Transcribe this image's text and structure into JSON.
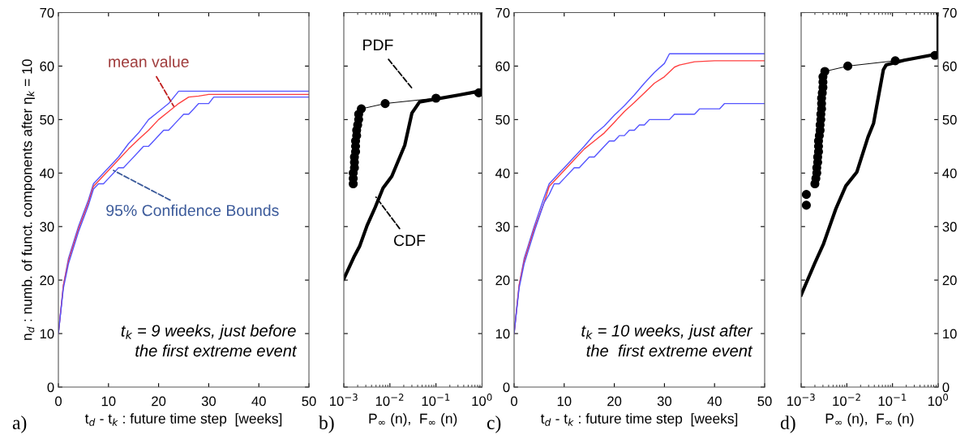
{
  "chart_data": [
    {
      "type": "line",
      "xlabel": "t$_{d}$ - t$_{k}$ : future time step  [weeks]",
      "ylabel": "n$_{d}$ : numb. of funct. components after η$_{k}$ = 10",
      "xlim": [
        0,
        50
      ],
      "xticks": [
        0,
        10,
        20,
        30,
        40,
        50
      ],
      "ylim": [
        0,
        70
      ],
      "yticks": [
        0,
        10,
        20,
        30,
        40,
        50,
        60,
        70
      ],
      "grid": false,
      "series": [
        {
          "color": "#5555ff",
          "x": [
            0,
            1,
            2,
            4,
            6,
            7,
            9,
            10,
            12,
            14,
            16,
            18,
            20,
            22,
            24,
            50
          ],
          "values": [
            10,
            19,
            24,
            30,
            35,
            38,
            40,
            41,
            43,
            45.5,
            47.5,
            50,
            51.5,
            53,
            55.3,
            55.3
          ]
        },
        {
          "color": "#ff4040",
          "x": [
            0,
            1,
            2,
            4,
            6,
            7,
            9,
            10,
            12,
            14,
            16,
            18,
            20,
            22,
            24,
            26,
            28,
            30,
            50
          ],
          "values": [
            10,
            19,
            23.5,
            29.5,
            34.5,
            37.5,
            39.5,
            40.5,
            42.5,
            44.5,
            46.3,
            48,
            50,
            51.5,
            53,
            54.2,
            54.4,
            54.7,
            54.7
          ]
        },
        {
          "color": "#5555ff",
          "x": [
            0,
            1,
            2,
            4,
            6,
            7,
            8,
            9,
            10,
            11,
            12,
            13,
            14,
            16,
            17,
            18,
            19,
            21,
            22,
            24,
            25,
            26,
            27,
            28,
            30,
            31,
            50
          ],
          "values": [
            10,
            18.5,
            23,
            29,
            34,
            37,
            38,
            38,
            39,
            40,
            41,
            41,
            42,
            44,
            45,
            45,
            46,
            48,
            48,
            50,
            51,
            51,
            52,
            53,
            53,
            54.2,
            54.2
          ]
        }
      ],
      "annotations": [
        "a)",
        {
          "text": "mean value",
          "x": 23,
          "y": 52.5
        },
        {
          "text": "95% Confidence Bounds",
          "x": 11,
          "y": 40.5
        },
        "t$_{k}$ = 9 weeks, just before\nthe first extreme event"
      ]
    },
    {
      "type": "line",
      "xlabel": "P$_{∞}$ (n),  F$_{∞}$ (n)",
      "log": "x",
      "xlim": [
        0.001,
        1
      ],
      "xticks": [
        {
          "value": 0.001,
          "label": "10$^{−3}$"
        },
        {
          "value": 0.01,
          "label": "10$^{−2}$"
        },
        {
          "value": 0.1,
          "label": "10$^{−1}$"
        },
        {
          "value": 1,
          "label": "10$^{0}$"
        }
      ],
      "ylim": [
        0,
        70
      ],
      "yticks": [
        0,
        10,
        20,
        30,
        40,
        50,
        60,
        70
      ],
      "tick_labels": "x",
      "grid": false,
      "series": [
        {
          "color": "#000000",
          "marker": "circle",
          "x": [
            0.0016,
            0.0016,
            0.0016,
            0.0017,
            0.0017,
            0.0017,
            0.0018,
            0.0018,
            0.0018,
            0.0019,
            0.0019,
            0.002,
            0.0021,
            0.0021,
            0.0024,
            0.0079,
            0.1,
            0.85
          ],
          "values": [
            38,
            39,
            40,
            41,
            42,
            43,
            44,
            45,
            46,
            47,
            48,
            49,
            50,
            51,
            52,
            53,
            54,
            55
          ]
        },
        {
          "color": "#000000",
          "x": [
            0.001,
            0.0017,
            0.0022,
            0.0032,
            0.0048,
            0.0071,
            0.011,
            0.021,
            0.03,
            0.044,
            0.32,
            0.87,
            1,
            1
          ],
          "values": [
            20.2,
            24.5,
            26.3,
            30.2,
            33.6,
            37.2,
            39.4,
            45.2,
            51.2,
            53.3,
            54.6,
            55.3,
            55.7,
            70
          ]
        }
      ],
      "annotations": [
        "b)",
        "PDF",
        {
          "text": "CDF",
          "x": 0.005,
          "y": 35.5
        }
      ]
    },
    {
      "type": "line",
      "xlabel": "t$_{d}$ - t$_{k}$ : future time step  [weeks]",
      "xlim": [
        0,
        50
      ],
      "xticks": [
        0,
        10,
        20,
        30,
        40,
        50
      ],
      "ylim": [
        0,
        70
      ],
      "yticks": [
        0,
        10,
        20,
        30,
        40,
        50,
        60,
        70
      ],
      "grid": false,
      "series": [
        {
          "color": "#5555ff",
          "x": [
            0,
            1,
            2,
            4,
            6,
            7,
            9,
            10,
            12,
            14,
            16,
            18,
            20,
            22,
            24,
            26,
            28,
            30,
            31,
            50
          ],
          "values": [
            10,
            19,
            24,
            30,
            35.5,
            38,
            40,
            41,
            43,
            45,
            47.2,
            48.8,
            50.8,
            52.6,
            54.6,
            56.8,
            58.8,
            60.5,
            62.3,
            62.3
          ]
        },
        {
          "color": "#ff4040",
          "x": [
            0,
            1,
            2,
            4,
            6,
            7,
            9,
            10,
            12,
            14,
            16,
            18,
            20,
            22,
            24,
            26,
            28,
            30,
            32,
            33,
            36,
            40,
            50
          ],
          "values": [
            10,
            19,
            23.5,
            29.5,
            34.5,
            37.5,
            39.5,
            40.5,
            42.5,
            44.5,
            46,
            47.5,
            49.5,
            51.5,
            53.2,
            55,
            56.8,
            58,
            59.8,
            60.2,
            60.8,
            61,
            61
          ]
        },
        {
          "color": "#5555ff",
          "x": [
            0,
            1,
            2,
            4,
            6,
            7,
            8,
            9,
            10,
            12,
            13,
            15,
            16,
            18,
            19,
            20,
            21,
            22,
            23,
            24,
            25,
            26,
            27,
            31,
            32,
            36,
            37,
            41,
            42,
            50
          ],
          "values": [
            10,
            18.5,
            23,
            29,
            34.5,
            36,
            38,
            38,
            39,
            41,
            41,
            43,
            43,
            45,
            46,
            46,
            47,
            47,
            48,
            48,
            49,
            49,
            50,
            50,
            51,
            51,
            52,
            52,
            53,
            53
          ]
        }
      ],
      "annotations": [
        "c)",
        "t$_{k}$ = 10 weeks, just after\nthe  first extreme event"
      ]
    },
    {
      "type": "line",
      "xlabel": "P$_{∞}$ (n),  F$_{∞}$ (n)",
      "log": "x",
      "xlim": [
        0.001,
        1
      ],
      "xticks": [
        {
          "value": 0.001,
          "label": "10$^{−3}$"
        },
        {
          "value": 0.01,
          "label": "10$^{−2}$"
        },
        {
          "value": 0.1,
          "label": "10$^{−1}$"
        },
        {
          "value": 1,
          "label": "10$^{0}$"
        }
      ],
      "ylim": [
        0,
        70
      ],
      "yticks": [
        0,
        10,
        20,
        30,
        40,
        50,
        60,
        70
      ],
      "grid": false,
      "series": [
        {
          "color": "#000000",
          "marker": "circle",
          "x": [
            0.002,
            0.0021,
            0.0022,
            0.0022,
            0.0023,
            0.0023,
            0.0024,
            0.0024,
            0.0024,
            0.0025,
            0.0026,
            0.0026,
            0.0027,
            0.0027,
            0.0028,
            0.0028,
            0.0028,
            0.0029,
            0.003,
            0.003,
            0.003,
            0.0033,
            0.0105,
            0.115,
            0.85
          ],
          "values": [
            38,
            39,
            40,
            41,
            42,
            43,
            44,
            45,
            46,
            47,
            48,
            49,
            50,
            51,
            52,
            53,
            54,
            55,
            56,
            57,
            58,
            59,
            60,
            61,
            62
          ]
        },
        {
          "color": "#000000",
          "x": [
            0.001,
            0.0013,
            0.002,
            0.0031,
            0.0044,
            0.0058,
            0.0095,
            0.0166,
            0.029,
            0.0385,
            0.063,
            0.0725,
            0.18,
            0.87,
            1,
            1
          ],
          "values": [
            17.2,
            19.5,
            23.2,
            26.8,
            30.5,
            33.4,
            37.6,
            40.2,
            46.7,
            49.3,
            59.3,
            60.2,
            61.1,
            62.2,
            62.4,
            70
          ]
        },
        {
          "type": "scatter",
          "color": "#000000",
          "marker": "circle",
          "x": [
            0.0013,
            0.0013
          ],
          "values": [
            34,
            36
          ]
        }
      ],
      "annotations": [
        "d)"
      ]
    }
  ]
}
